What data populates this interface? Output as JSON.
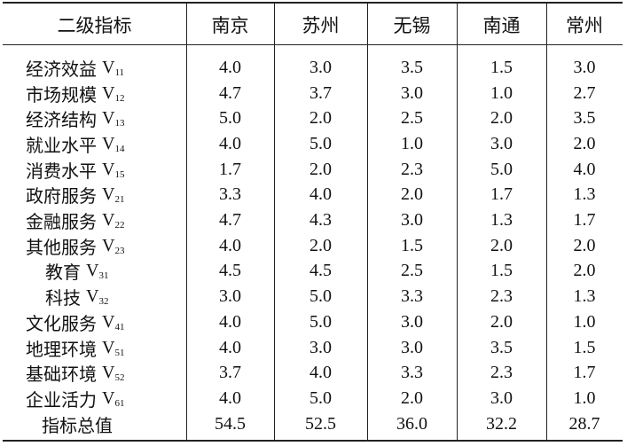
{
  "table": {
    "headers": [
      "二级指标",
      "南京",
      "苏州",
      "无锡",
      "南通",
      "常州"
    ],
    "rows": [
      {
        "name": "经济效益",
        "code_letter": "V",
        "code_sub": "11",
        "values": [
          "4.0",
          "3.0",
          "3.5",
          "1.5",
          "3.0"
        ]
      },
      {
        "name": "市场规模",
        "code_letter": "V",
        "code_sub": "12",
        "values": [
          "4.7",
          "3.7",
          "3.0",
          "1.0",
          "2.7"
        ]
      },
      {
        "name": "经济结构",
        "code_letter": "V",
        "code_sub": "13",
        "values": [
          "5.0",
          "2.0",
          "2.5",
          "2.0",
          "3.5"
        ]
      },
      {
        "name": "就业水平",
        "code_letter": "V",
        "code_sub": "14",
        "values": [
          "4.0",
          "5.0",
          "1.0",
          "3.0",
          "2.0"
        ]
      },
      {
        "name": "消费水平",
        "code_letter": "V",
        "code_sub": "15",
        "values": [
          "1.7",
          "2.0",
          "2.3",
          "5.0",
          "4.0"
        ]
      },
      {
        "name": "政府服务",
        "code_letter": "V",
        "code_sub": "21",
        "values": [
          "3.3",
          "4.0",
          "2.0",
          "1.7",
          "1.3"
        ]
      },
      {
        "name": "金融服务",
        "code_letter": "V",
        "code_sub": "22",
        "values": [
          "4.7",
          "4.3",
          "3.0",
          "1.3",
          "1.7"
        ]
      },
      {
        "name": "其他服务",
        "code_letter": "V",
        "code_sub": "23",
        "values": [
          "4.0",
          "2.0",
          "1.5",
          "2.0",
          "2.0"
        ]
      },
      {
        "name": "教育",
        "code_letter": "V",
        "code_sub": "31",
        "values": [
          "4.5",
          "4.5",
          "2.5",
          "1.5",
          "2.0"
        ]
      },
      {
        "name": "科技",
        "code_letter": "V",
        "code_sub": "32",
        "values": [
          "3.0",
          "5.0",
          "3.3",
          "2.3",
          "1.3"
        ]
      },
      {
        "name": "文化服务",
        "code_letter": "V",
        "code_sub": "41",
        "values": [
          "4.0",
          "5.0",
          "3.0",
          "2.0",
          "1.0"
        ]
      },
      {
        "name": "地理环境",
        "code_letter": "V",
        "code_sub": "51",
        "values": [
          "4.0",
          "3.0",
          "3.0",
          "3.5",
          "1.5"
        ]
      },
      {
        "name": "基础环境",
        "code_letter": "V",
        "code_sub": "52",
        "values": [
          "3.7",
          "4.0",
          "3.3",
          "2.3",
          "1.7"
        ]
      },
      {
        "name": "企业活力",
        "code_letter": "V",
        "code_sub": "61",
        "values": [
          "4.0",
          "5.0",
          "2.0",
          "3.0",
          "1.0"
        ]
      }
    ],
    "total_row": {
      "name": "指标总值",
      "values": [
        "54.5",
        "52.5",
        "36.0",
        "32.2",
        "28.7"
      ]
    }
  }
}
